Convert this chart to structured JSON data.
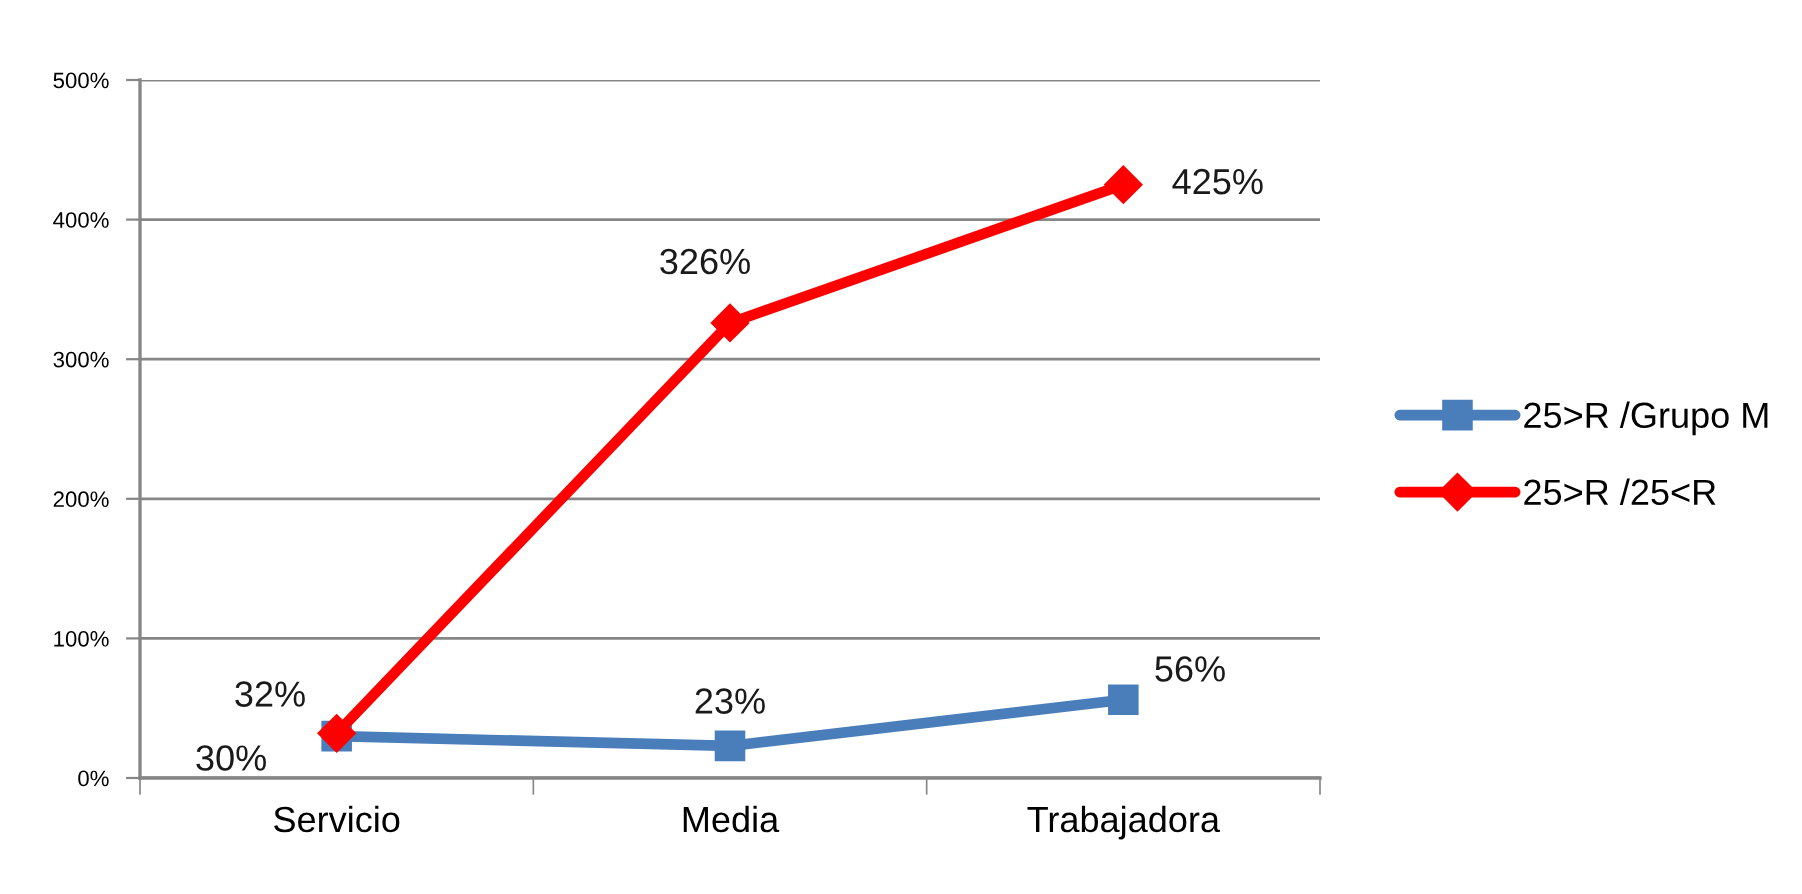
{
  "chart_data": {
    "type": "line",
    "categories": [
      "Servicio",
      "Media",
      "Trabajadora"
    ],
    "series": [
      {
        "name": "25>R /Grupo M",
        "color": "#4a7ebb",
        "marker": "square",
        "values": [
          30,
          23,
          56
        ],
        "value_labels": [
          "30%",
          "23%",
          "56%"
        ]
      },
      {
        "name": "25>R /25<R",
        "color": "#ff0000",
        "marker": "diamond",
        "values": [
          32,
          326,
          425
        ],
        "value_labels": [
          "32%",
          "326%",
          "425%"
        ]
      }
    ],
    "ylim": [
      0,
      500
    ],
    "yticks": [
      {
        "value": 0,
        "label": "0%"
      },
      {
        "value": 100,
        "label": "100%"
      },
      {
        "value": 200,
        "label": "200%"
      },
      {
        "value": 300,
        "label": "300%"
      },
      {
        "value": 400,
        "label": "400%"
      },
      {
        "value": 500,
        "label": "500%"
      }
    ],
    "grid": "y",
    "legend": "right",
    "line_style": "solid"
  }
}
